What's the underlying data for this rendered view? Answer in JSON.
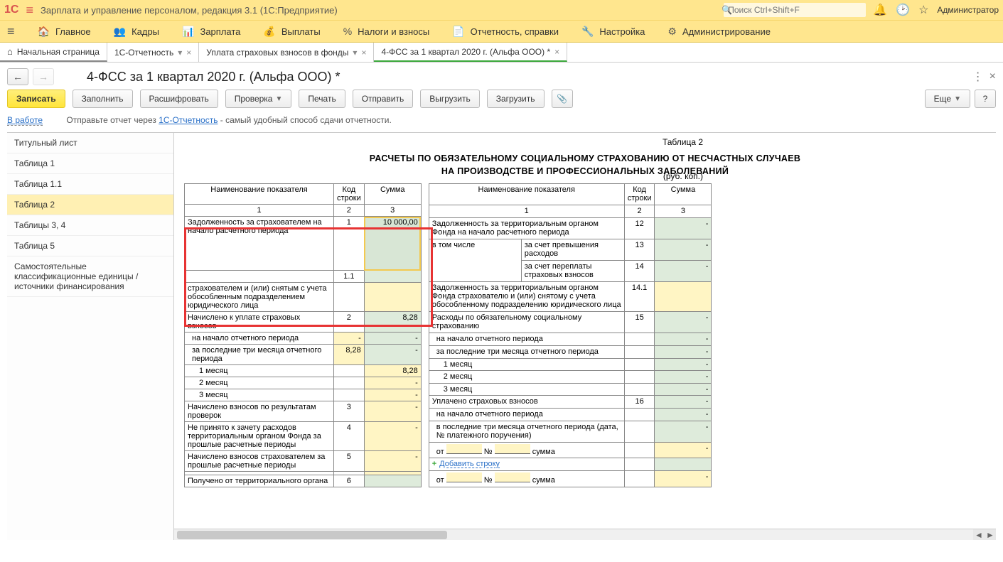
{
  "titlebar": {
    "app_title": "Зарплата и управление персоналом, редакция 3.1  (1С:Предприятие)",
    "search_placeholder": "Поиск Ctrl+Shift+F",
    "user": "Администратор"
  },
  "menu": {
    "items": [
      {
        "icon": "≡",
        "label": ""
      },
      {
        "icon": "🏠",
        "label": "Главное"
      },
      {
        "icon": "👥",
        "label": "Кадры"
      },
      {
        "icon": "📊",
        "label": "Зарплата"
      },
      {
        "icon": "💰",
        "label": "Выплаты"
      },
      {
        "icon": "%",
        "label": "Налоги и взносы"
      },
      {
        "icon": "📄",
        "label": "Отчетность, справки"
      },
      {
        "icon": "🔧",
        "label": "Настройка"
      },
      {
        "icon": "⚙",
        "label": "Администрирование"
      }
    ]
  },
  "tabs": {
    "home": "Начальная страница",
    "items": [
      {
        "label": "1С-Отчетность"
      },
      {
        "label": "Уплата страховых взносов в фонды"
      },
      {
        "label": "4-ФСС за 1 квартал 2020 г. (Альфа ООО) *",
        "active": true
      }
    ]
  },
  "form": {
    "title": "4-ФСС за 1 квартал 2020 г. (Альфа ООО) *",
    "buttons": {
      "save": "Записать",
      "fill": "Заполнить",
      "decrypt": "Расшифровать",
      "check": "Проверка",
      "print": "Печать",
      "send": "Отправить",
      "export": "Выгрузить",
      "import": "Загрузить",
      "more": "Еще"
    },
    "status": "В работе",
    "hint_prefix": "Отправьте отчет через ",
    "hint_link": "1С-Отчетность",
    "hint_suffix": " - самый удобный способ сдачи отчетности."
  },
  "sidebar": {
    "items": [
      "Титульный лист",
      "Таблица 1",
      "Таблица 1.1",
      "Таблица 2",
      "Таблицы 3, 4",
      "Таблица 5",
      "Самостоятельные классификационные единицы / источники финансирования"
    ],
    "active_index": 3
  },
  "doc": {
    "table_label": "Таблица 2",
    "units": "(руб. коп.)",
    "title_line1": "РАСЧЕТЫ ПО ОБЯЗАТЕЛЬНОМУ СОЦИАЛЬНОМУ СТРАХОВАНИЮ ОТ НЕСЧАСТНЫХ СЛУЧАЕВ",
    "title_line2": "НА ПРОИЗВОДСТВЕ И ПРОФЕССИОНАЛЬНЫХ ЗАБОЛЕВАНИЙ",
    "headers": {
      "name": "Наименование показателя",
      "code": "Код строки",
      "sum": "Сумма"
    },
    "col_nums": {
      "c1": "1",
      "c2": "2",
      "c3": "3"
    },
    "left_rows": [
      {
        "name": "Задолженность за страхователем на начало расчетного периода",
        "code": "1",
        "sum": "10 000,00",
        "sum_class": "sel-cell",
        "tall": true
      },
      {
        "name": "",
        "code": "1.1",
        "sum": "",
        "sum_class": "fill-green"
      },
      {
        "name": "страхователем и (или) снятым с учета обособленным подразделением юридического лица",
        "code": "",
        "sum": "",
        "sum_class": "fill-yellow",
        "name_noborder": true
      },
      {
        "name": "Начислено к уплате страховых взносов",
        "code": "2",
        "sum": "8,28",
        "sum_class": "fill-green"
      },
      {
        "name": "на начало отчетного периода",
        "code": "",
        "sum": "-",
        "sum_class": "fill-green",
        "sub": true,
        "has_split": true,
        "split_val": "-"
      },
      {
        "name": "за последние три месяца отчетного периода",
        "code": "",
        "sum": "-",
        "sum_class": "fill-green",
        "sub": true,
        "has_split": true,
        "split_val": "8,28"
      },
      {
        "name": "1 месяц",
        "code": "",
        "sum": "8,28",
        "sum_class": "fill-yellow",
        "sub2": true
      },
      {
        "name": "2 месяц",
        "code": "",
        "sum": "-",
        "sum_class": "fill-yellow",
        "sub2": true
      },
      {
        "name": "3 месяц",
        "code": "",
        "sum": "-",
        "sum_class": "fill-yellow",
        "sub2": true
      },
      {
        "name": "Начислено взносов по результатам проверок",
        "code": "3",
        "sum": "-",
        "sum_class": "fill-yellow"
      },
      {
        "name": "Не принято к зачету расходов территориальным органом Фонда за прошлые расчетные периоды",
        "code": "4",
        "sum": "-",
        "sum_class": "fill-yellow"
      },
      {
        "name": "Начислено взносов страхователем за прошлые расчетные периоды",
        "code": "5",
        "sum": "-",
        "sum_class": "fill-yellow"
      },
      {
        "name": "",
        "code": "",
        "sum": "",
        "sum_class": "fill-yellow"
      },
      {
        "name": "Получено от территориального органа",
        "code": "6",
        "sum": "",
        "sum_class": "fill-green"
      }
    ],
    "right_rows": [
      {
        "name": "Задолженность за территориальным органом Фонда на начало расчетного периода",
        "code": "12",
        "sum": "-",
        "sum_class": "fill-green",
        "span2": true
      },
      {
        "name": "в том числе",
        "sub_name": "за счет превышения расходов",
        "code": "13",
        "sum": "-",
        "sum_class": "fill-green",
        "rowspan": 2
      },
      {
        "sub_name": "за счет переплаты страховых взносов",
        "code": "14",
        "sum": "-",
        "sum_class": "fill-green"
      },
      {
        "name": "Задолженность за территориальным органом Фонда страхователю и (или) снятому с учета обособленному подразделению юридического лица",
        "code": "14.1",
        "sum": "",
        "sum_class": "fill-yellow",
        "span2": true
      },
      {
        "name": "Расходы по обязательному социальному страхованию",
        "code": "15",
        "sum": "-",
        "sum_class": "fill-green",
        "span2": true
      },
      {
        "name": "на начало отчетного периода",
        "code": "",
        "sum": "-",
        "sum_class": "fill-green",
        "sub": true,
        "span2": true
      },
      {
        "name": "за последние три месяца отчетного периода",
        "code": "",
        "sum": "-",
        "sum_class": "fill-green",
        "sub": true,
        "span2": true
      },
      {
        "name": "1 месяц",
        "code": "",
        "sum": "-",
        "sum_class": "fill-green",
        "sub2": true,
        "span2": true
      },
      {
        "name": "2 месяц",
        "code": "",
        "sum": "-",
        "sum_class": "fill-green",
        "sub2": true,
        "span2": true
      },
      {
        "name": "3 месяц",
        "code": "",
        "sum": "-",
        "sum_class": "fill-green",
        "sub2": true,
        "span2": true
      },
      {
        "name": "Уплачено страховых взносов",
        "code": "16",
        "sum": "-",
        "sum_class": "fill-green",
        "span2": true
      },
      {
        "name": "на начало отчетного периода",
        "code": "",
        "sum": "-",
        "sum_class": "fill-green",
        "sub": true,
        "span2": true
      },
      {
        "name": "в последние три месяца отчетного периода (дата, № платежного поручения)",
        "code": "",
        "sum": "-",
        "sum_class": "fill-green",
        "sub": true,
        "span2": true
      }
    ],
    "pay_labels": {
      "from": "от",
      "num": "№",
      "sum": "сумма"
    },
    "add_link": "Добавить строку"
  }
}
